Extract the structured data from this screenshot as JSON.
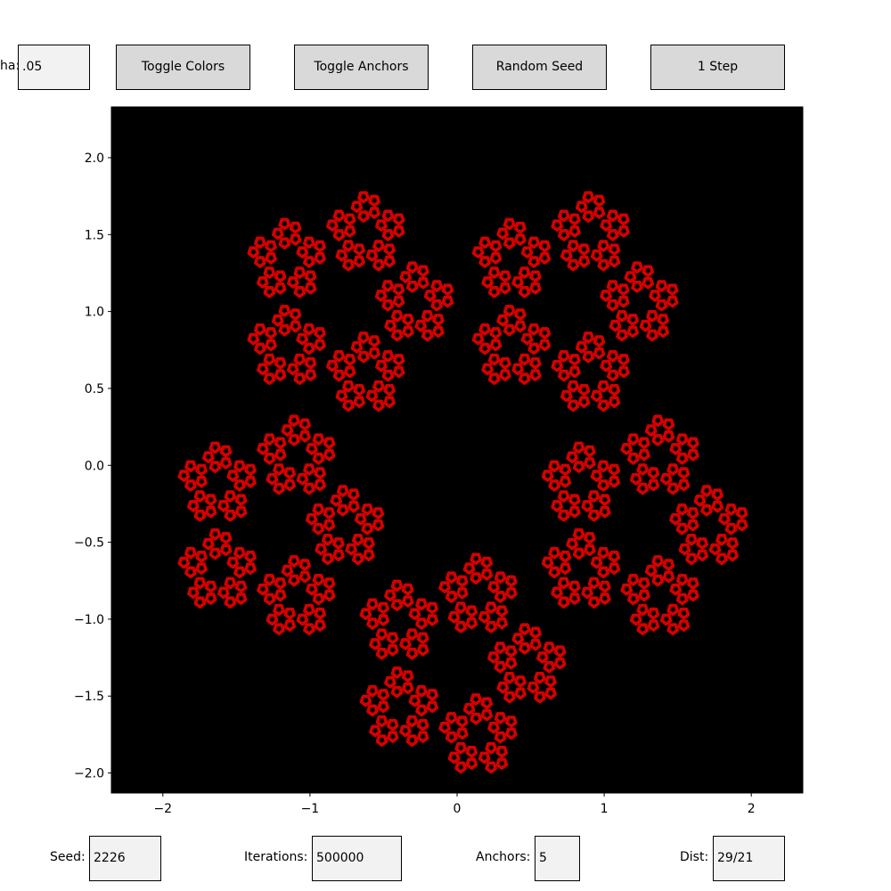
{
  "controls": {
    "alpha_label": "ha:",
    "alpha_value": ".05",
    "toggle_colors_label": "Toggle Colors",
    "toggle_anchors_label": "Toggle Anchors",
    "random_seed_label": "Random Seed",
    "step_label": "1 Step"
  },
  "bottom_controls": {
    "seed_label": "Seed:",
    "seed_value": "2226",
    "iterations_label": "Iterations:",
    "iterations_value": "500000",
    "anchors_label": "Anchors:",
    "anchors_value": "5",
    "dist_label": "Dist:",
    "dist_value": "29/21"
  },
  "chart_data": {
    "type": "scatter",
    "title": "",
    "xlabel": "",
    "ylabel": "",
    "xlim": [
      -2.35,
      2.35
    ],
    "ylim": [
      -2.13,
      2.33
    ],
    "xticks": [
      -2,
      -1,
      0,
      1,
      2
    ],
    "xtick_labels": [
      "−2",
      "−1",
      "0",
      "1",
      "2"
    ],
    "yticks": [
      2.0,
      1.5,
      1.0,
      0.5,
      0.0,
      -0.5,
      -1.0,
      -1.5,
      -2.0
    ],
    "ytick_labels": [
      "2.0",
      "1.5",
      "1.0",
      "0.5",
      "0.0",
      "−0.5",
      "−1.0",
      "−1.5",
      "−2.0"
    ],
    "background_color": "#000000",
    "point_color": "#d40000",
    "grid": false,
    "anchors": 5,
    "distance_fraction": "29/21",
    "iterations": 500000,
    "seed": 2226,
    "description_of_points": "chaos-game fractal"
  }
}
